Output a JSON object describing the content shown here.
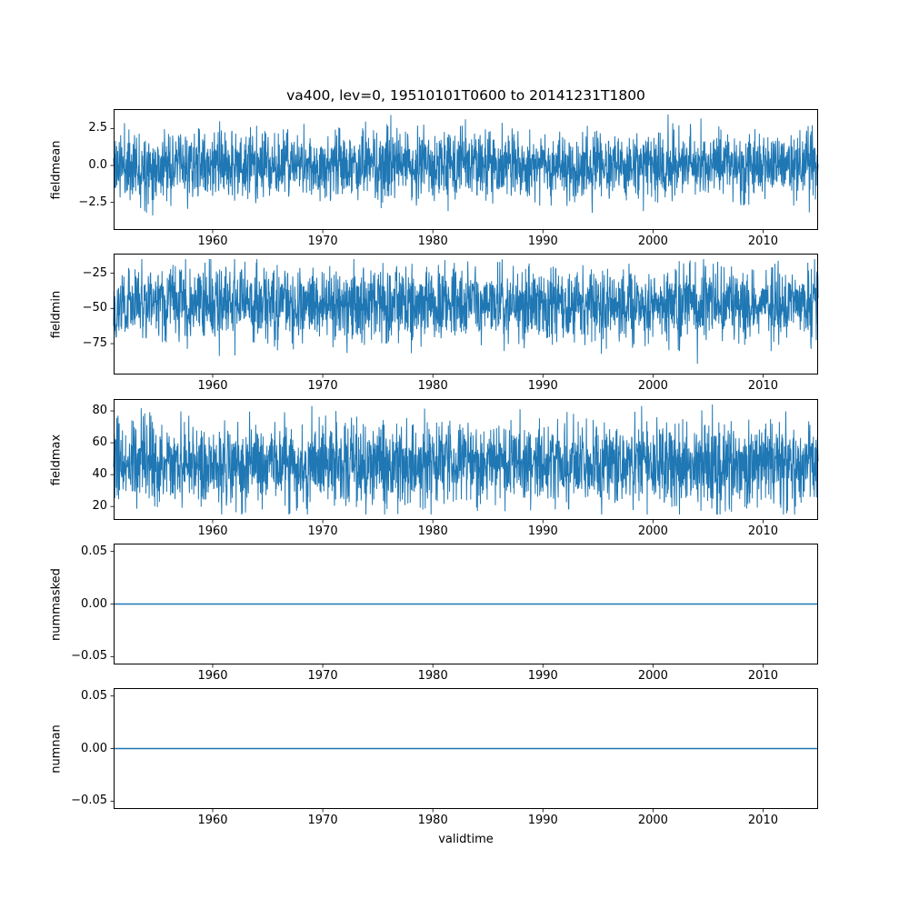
{
  "figure": {
    "title": "va400, lev=0, 19510101T0600 to 20141231T1800",
    "xlabel": "validtime",
    "background": "#ffffff",
    "line_color": "#1f77b4",
    "axis_color": "#000000",
    "time_start": "19510101T0600",
    "time_end": "20141231T1800"
  },
  "chart_data": [
    {
      "type": "line",
      "ylabel": "fieldmean",
      "xlim": [
        1951.0,
        2015.0
      ],
      "xticks": [
        "1960",
        "1970",
        "1980",
        "1990",
        "2000",
        "2010"
      ],
      "ylim": [
        -4.37,
        3.82
      ],
      "yticks": [
        {
          "value": 2.5,
          "label": "2.5"
        },
        {
          "value": 0.0,
          "label": "0.0"
        },
        {
          "value": -2.5,
          "label": "−2.5"
        }
      ],
      "series": {
        "kind": "noise",
        "seed": 11,
        "points": 2400,
        "mean": 0.0,
        "std": 1.15,
        "min": -4.0,
        "max": 3.45
      },
      "summary": "dense noisy field mean centred near 0, typical band ±2.5, extremes −4.0 to 3.4"
    },
    {
      "type": "line",
      "ylabel": "fieldmin",
      "xlim": [
        1951.0,
        2015.0
      ],
      "xticks": [
        "1960",
        "1970",
        "1980",
        "1990",
        "2000",
        "2010"
      ],
      "ylim": [
        -96.9,
        -11.1
      ],
      "yticks": [
        {
          "value": -25,
          "label": "−25"
        },
        {
          "value": -50,
          "label": "−50"
        },
        {
          "value": -75,
          "label": "−75"
        }
      ],
      "series": {
        "kind": "noise",
        "seed": 22,
        "points": 2400,
        "mean": -46.5,
        "std": 13,
        "min": -93,
        "max": -15
      },
      "summary": "dense noisy field minimum around −46, typical band −70 to −25, extremes to −93"
    },
    {
      "type": "line",
      "ylabel": "fieldmax",
      "xlim": [
        1951.0,
        2015.0
      ],
      "xticks": [
        "1960",
        "1970",
        "1980",
        "1990",
        "2000",
        "2010"
      ],
      "ylim": [
        11.55,
        87.45
      ],
      "yticks": [
        {
          "value": 80,
          "label": "80"
        },
        {
          "value": 60,
          "label": "60"
        },
        {
          "value": 40,
          "label": "40"
        },
        {
          "value": 20,
          "label": "20"
        }
      ],
      "series": {
        "kind": "noise",
        "seed": 33,
        "points": 2400,
        "mean": 46.5,
        "std": 13,
        "min": 15,
        "max": 84
      },
      "summary": "dense noisy field maximum around 46, typical band 20 to 70, extremes to 84"
    },
    {
      "type": "line",
      "ylabel": "nummasked",
      "xlim": [
        1951.0,
        2015.0
      ],
      "xticks": [
        "1960",
        "1970",
        "1980",
        "1990",
        "2000",
        "2010"
      ],
      "ylim": [
        -0.0575,
        0.0575
      ],
      "yticks": [
        {
          "value": 0.05,
          "label": "0.05"
        },
        {
          "value": 0.0,
          "label": "0.00"
        },
        {
          "value": -0.05,
          "label": "−0.05"
        }
      ],
      "series": {
        "kind": "constant",
        "value": 0.0
      },
      "summary": "constant zero line: no masked values over the whole period"
    },
    {
      "type": "line",
      "ylabel": "numnan",
      "xlim": [
        1951.0,
        2015.0
      ],
      "xticks": [
        "1960",
        "1970",
        "1980",
        "1990",
        "2000",
        "2010"
      ],
      "ylim": [
        -0.0575,
        0.0575
      ],
      "yticks": [
        {
          "value": 0.05,
          "label": "0.05"
        },
        {
          "value": 0.0,
          "label": "0.00"
        },
        {
          "value": -0.05,
          "label": "−0.05"
        }
      ],
      "series": {
        "kind": "constant",
        "value": 0.0
      },
      "summary": "constant zero line: no NaN values over the whole period"
    }
  ]
}
